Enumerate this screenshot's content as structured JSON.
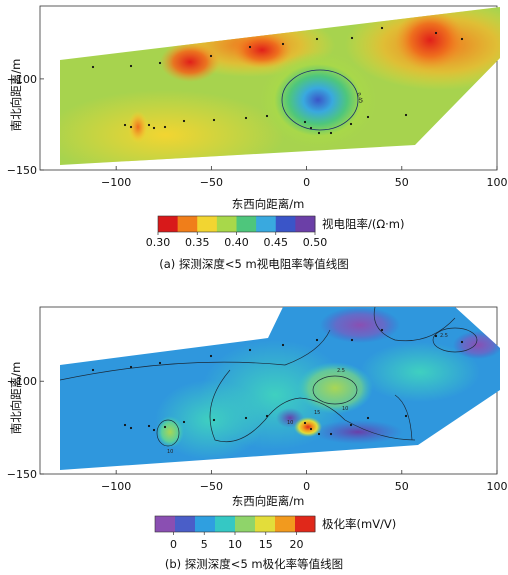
{
  "chart_data": [
    {
      "type": "heatmap",
      "title": "",
      "caption": "(a) 探测深度<5 m视电阻率等值线图",
      "xlabel": "东西向距离/m",
      "ylabel": "南北向距离/m",
      "xlim": [
        -140,
        100
      ],
      "ylim": [
        -150,
        -60
      ],
      "xticks": [
        -100,
        -50,
        0,
        50,
        100
      ],
      "yticks": [
        -100,
        -150
      ],
      "colorbar": {
        "label": "视电阻率/(Ω·m)",
        "ticks": [
          "0.30",
          "0.35",
          "0.40",
          "0.45",
          "0.50"
        ],
        "range": [
          0.3,
          0.5
        ],
        "colors": [
          "#d8191a",
          "#f07e1a",
          "#f2d531",
          "#a8d84a",
          "#4ec67c",
          "#39a9df",
          "#3a55c8",
          "#6b3fa7"
        ]
      },
      "contour_labels": [
        "0.45"
      ],
      "grid": false
    },
    {
      "type": "heatmap",
      "title": "",
      "caption": "(b) 探测深度<5 m极化率等值线图",
      "xlabel": "东西向距离/m",
      "ylabel": "南北向距离/m",
      "xlim": [
        -140,
        100
      ],
      "ylim": [
        -150,
        -60
      ],
      "xticks": [
        -100,
        -50,
        0,
        50,
        100
      ],
      "yticks": [
        -100,
        -150
      ],
      "colorbar": {
        "label": "极化率(mV/V)",
        "ticks": [
          "0",
          "5",
          "10",
          "15",
          "20"
        ],
        "range": [
          -3,
          23
        ],
        "colors": [
          "#8a4fb2",
          "#4a5ec8",
          "#2f9fe0",
          "#35c8c4",
          "#8fd46a",
          "#e3dd3a",
          "#f29a1e",
          "#e0281a"
        ]
      },
      "contour_labels": [
        "2.5",
        "10",
        "10",
        "15",
        "10",
        "2.5"
      ],
      "grid": false
    }
  ]
}
